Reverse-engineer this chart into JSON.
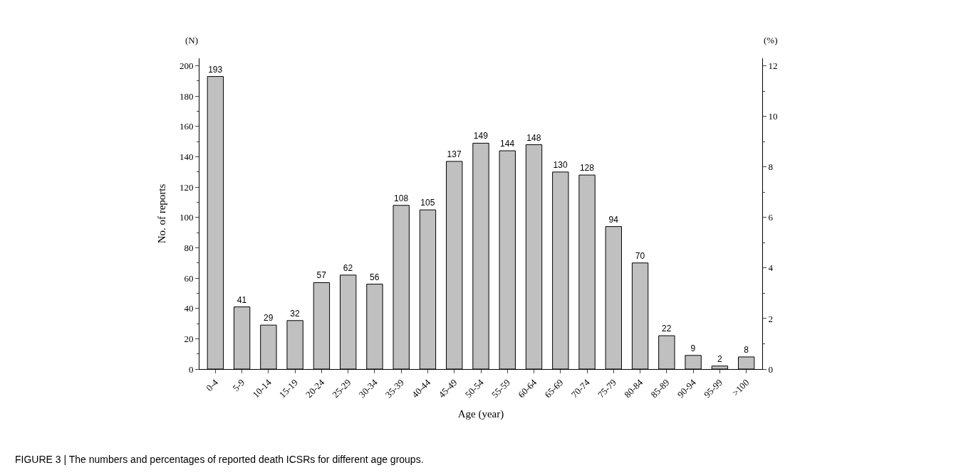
{
  "chart_data": {
    "type": "bar",
    "xlabel": "Age (year)",
    "ylabel": "No. of reports",
    "y2label": "(%)",
    "categories": [
      "0-4",
      "5-9",
      "10-14",
      "15-19",
      "20-24",
      "25-29",
      "30-34",
      "35-39",
      "40-44",
      "45-49",
      "50-54",
      "55-59",
      "60-64",
      "65-69",
      "70-74",
      "75-79",
      "80-84",
      "85-89",
      "90-94",
      "95-99",
      ">100"
    ],
    "values": [
      193,
      41,
      29,
      32,
      57,
      62,
      56,
      108,
      105,
      137,
      149,
      144,
      148,
      130,
      128,
      94,
      70,
      22,
      9,
      2,
      8
    ],
    "color": "#c0c0c0",
    "data_labels": true,
    "ylim": [
      0,
      205
    ],
    "yticks": [
      0,
      20,
      40,
      60,
      80,
      100,
      120,
      140,
      160,
      180,
      200
    ],
    "y2lim": [
      0,
      12.3
    ],
    "y2ticks": [
      0,
      2,
      4,
      6,
      8,
      10,
      12
    ],
    "annotations": [
      "(N)",
      "FIGURE 3 | The numbers and percentages of reported death ICSRs for different age groups."
    ],
    "legend": false
  }
}
